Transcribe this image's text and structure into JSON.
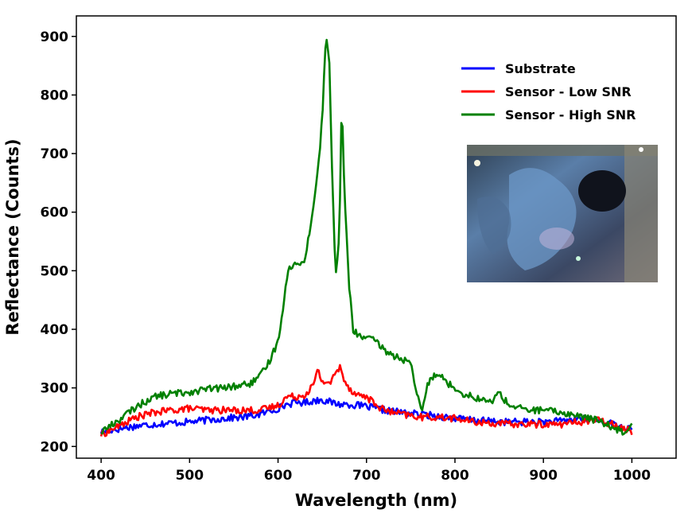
{
  "chart_data": {
    "type": "line",
    "title": "",
    "xlabel": "Wavelength (nm)",
    "ylabel": "Reflectance (Counts)",
    "xlim": [
      372,
      1050
    ],
    "ylim": [
      180,
      935
    ],
    "xticks": [
      400,
      500,
      600,
      700,
      800,
      900,
      1000
    ],
    "yticks": [
      200,
      300,
      400,
      500,
      600,
      700,
      800,
      900
    ],
    "grid": false,
    "legend_position": "top-right",
    "series": [
      {
        "name": "Substrate",
        "color": "#0000ff",
        "points": [
          [
            400,
            225
          ],
          [
            420,
            230
          ],
          [
            440,
            235
          ],
          [
            460,
            238
          ],
          [
            480,
            240
          ],
          [
            500,
            242
          ],
          [
            520,
            245
          ],
          [
            540,
            248
          ],
          [
            560,
            250
          ],
          [
            580,
            255
          ],
          [
            600,
            265
          ],
          [
            610,
            272
          ],
          [
            620,
            275
          ],
          [
            630,
            275
          ],
          [
            640,
            278
          ],
          [
            650,
            280
          ],
          [
            660,
            275
          ],
          [
            670,
            272
          ],
          [
            680,
            272
          ],
          [
            690,
            270
          ],
          [
            700,
            268
          ],
          [
            710,
            265
          ],
          [
            720,
            262
          ],
          [
            740,
            258
          ],
          [
            760,
            255
          ],
          [
            780,
            252
          ],
          [
            800,
            248
          ],
          [
            820,
            245
          ],
          [
            840,
            243
          ],
          [
            860,
            242
          ],
          [
            880,
            242
          ],
          [
            900,
            242
          ],
          [
            920,
            243
          ],
          [
            940,
            248
          ],
          [
            960,
            245
          ],
          [
            980,
            238
          ],
          [
            1000,
            228
          ]
        ]
      },
      {
        "name": "Sensor - Low SNR",
        "color": "#ff0000",
        "points": [
          [
            400,
            220
          ],
          [
            420,
            235
          ],
          [
            440,
            250
          ],
          [
            460,
            258
          ],
          [
            480,
            262
          ],
          [
            500,
            265
          ],
          [
            520,
            262
          ],
          [
            540,
            262
          ],
          [
            560,
            262
          ],
          [
            580,
            262
          ],
          [
            600,
            270
          ],
          [
            610,
            285
          ],
          [
            620,
            285
          ],
          [
            630,
            288
          ],
          [
            640,
            305
          ],
          [
            645,
            330
          ],
          [
            650,
            310
          ],
          [
            660,
            310
          ],
          [
            665,
            325
          ],
          [
            670,
            335
          ],
          [
            675,
            315
          ],
          [
            680,
            300
          ],
          [
            690,
            288
          ],
          [
            700,
            285
          ],
          [
            710,
            272
          ],
          [
            720,
            262
          ],
          [
            730,
            258
          ],
          [
            740,
            255
          ],
          [
            760,
            250
          ],
          [
            780,
            250
          ],
          [
            800,
            248
          ],
          [
            820,
            242
          ],
          [
            840,
            240
          ],
          [
            860,
            238
          ],
          [
            880,
            238
          ],
          [
            900,
            238
          ],
          [
            920,
            238
          ],
          [
            940,
            242
          ],
          [
            960,
            245
          ],
          [
            980,
            238
          ],
          [
            1000,
            225
          ]
        ]
      },
      {
        "name": "Sensor - High SNR",
        "color": "#008000",
        "points": [
          [
            400,
            225
          ],
          [
            420,
            245
          ],
          [
            440,
            268
          ],
          [
            460,
            285
          ],
          [
            480,
            290
          ],
          [
            500,
            293
          ],
          [
            520,
            298
          ],
          [
            540,
            300
          ],
          [
            560,
            305
          ],
          [
            570,
            308
          ],
          [
            580,
            320
          ],
          [
            590,
            345
          ],
          [
            600,
            380
          ],
          [
            605,
            430
          ],
          [
            610,
            490
          ],
          [
            615,
            510
          ],
          [
            625,
            510
          ],
          [
            630,
            520
          ],
          [
            635,
            560
          ],
          [
            640,
            610
          ],
          [
            645,
            670
          ],
          [
            650,
            760
          ],
          [
            653,
            870
          ],
          [
            655,
            898
          ],
          [
            658,
            850
          ],
          [
            662,
            620
          ],
          [
            665,
            500
          ],
          [
            668,
            520
          ],
          [
            670,
            620
          ],
          [
            672,
            795
          ],
          [
            675,
            640
          ],
          [
            680,
            480
          ],
          [
            685,
            400
          ],
          [
            690,
            390
          ],
          [
            700,
            385
          ],
          [
            710,
            380
          ],
          [
            720,
            365
          ],
          [
            730,
            355
          ],
          [
            740,
            350
          ],
          [
            750,
            340
          ],
          [
            755,
            300
          ],
          [
            762,
            262
          ],
          [
            765,
            275
          ],
          [
            770,
            310
          ],
          [
            780,
            328
          ],
          [
            790,
            310
          ],
          [
            800,
            300
          ],
          [
            810,
            290
          ],
          [
            820,
            285
          ],
          [
            830,
            280
          ],
          [
            840,
            275
          ],
          [
            850,
            292
          ],
          [
            860,
            272
          ],
          [
            880,
            262
          ],
          [
            900,
            262
          ],
          [
            920,
            258
          ],
          [
            940,
            252
          ],
          [
            960,
            245
          ],
          [
            980,
            232
          ],
          [
            990,
            225
          ],
          [
            1000,
            238
          ]
        ]
      }
    ]
  }
}
